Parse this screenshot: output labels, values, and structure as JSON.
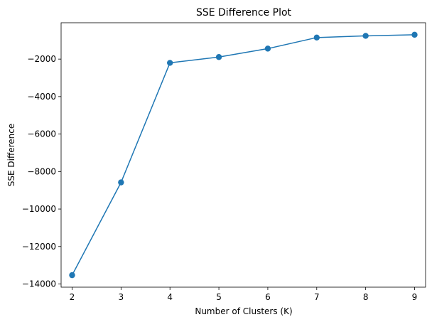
{
  "chart_data": {
    "type": "line",
    "title": "SSE Difference Plot",
    "xlabel": "Number of Clusters (K)",
    "ylabel": "SSE Difference",
    "x": [
      2,
      3,
      4,
      5,
      6,
      7,
      8,
      9
    ],
    "series": [
      {
        "values": [
          -13530,
          -8580,
          -2200,
          -1890,
          -1440,
          -850,
          -760,
          -700
        ],
        "color": "#1f77b4",
        "marker": "circle"
      }
    ],
    "xlim": [
      1.775,
      9.225
    ],
    "ylim": [
      -14170,
      -60
    ],
    "xticks": [
      2,
      3,
      4,
      5,
      6,
      7,
      8,
      9
    ],
    "yticks": [
      -14000,
      -12000,
      -10000,
      -8000,
      -6000,
      -4000,
      -2000
    ],
    "ytick_labels": [
      "−14000",
      "−12000",
      "−10000",
      "−8000",
      "−6000",
      "−4000",
      "−2000"
    ],
    "grid": false,
    "legend": false
  }
}
